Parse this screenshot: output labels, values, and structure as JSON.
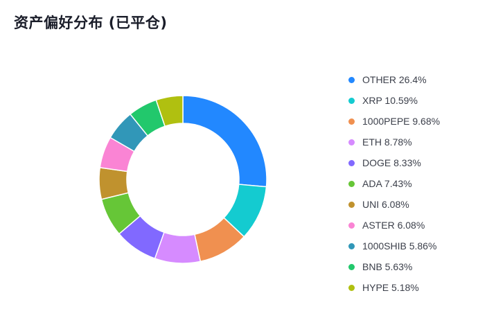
{
  "title": "资产偏好分布 (已平仓)",
  "chart_data": {
    "type": "pie",
    "variant": "donut",
    "title": "资产偏好分布 (已平仓)",
    "legend_position": "right",
    "slices": [
      {
        "label": "OTHER",
        "value": 26.4,
        "color": "#2288ff"
      },
      {
        "label": "XRP",
        "value": 10.59,
        "color": "#14cbd0"
      },
      {
        "label": "1000PEPE",
        "value": 9.68,
        "color": "#f09050"
      },
      {
        "label": "ETH",
        "value": 8.78,
        "color": "#d68bff"
      },
      {
        "label": "DOGE",
        "value": 8.33,
        "color": "#8169ff"
      },
      {
        "label": "ADA",
        "value": 7.43,
        "color": "#66c637"
      },
      {
        "label": "UNI",
        "value": 6.08,
        "color": "#c0922e"
      },
      {
        "label": "ASTER",
        "value": 6.08,
        "color": "#fa84d4"
      },
      {
        "label": "1000SHIB",
        "value": 5.86,
        "color": "#3197b8"
      },
      {
        "label": "BNB",
        "value": 5.63,
        "color": "#22c86c"
      },
      {
        "label": "HYPE",
        "value": 5.18,
        "color": "#b0c010"
      }
    ]
  }
}
